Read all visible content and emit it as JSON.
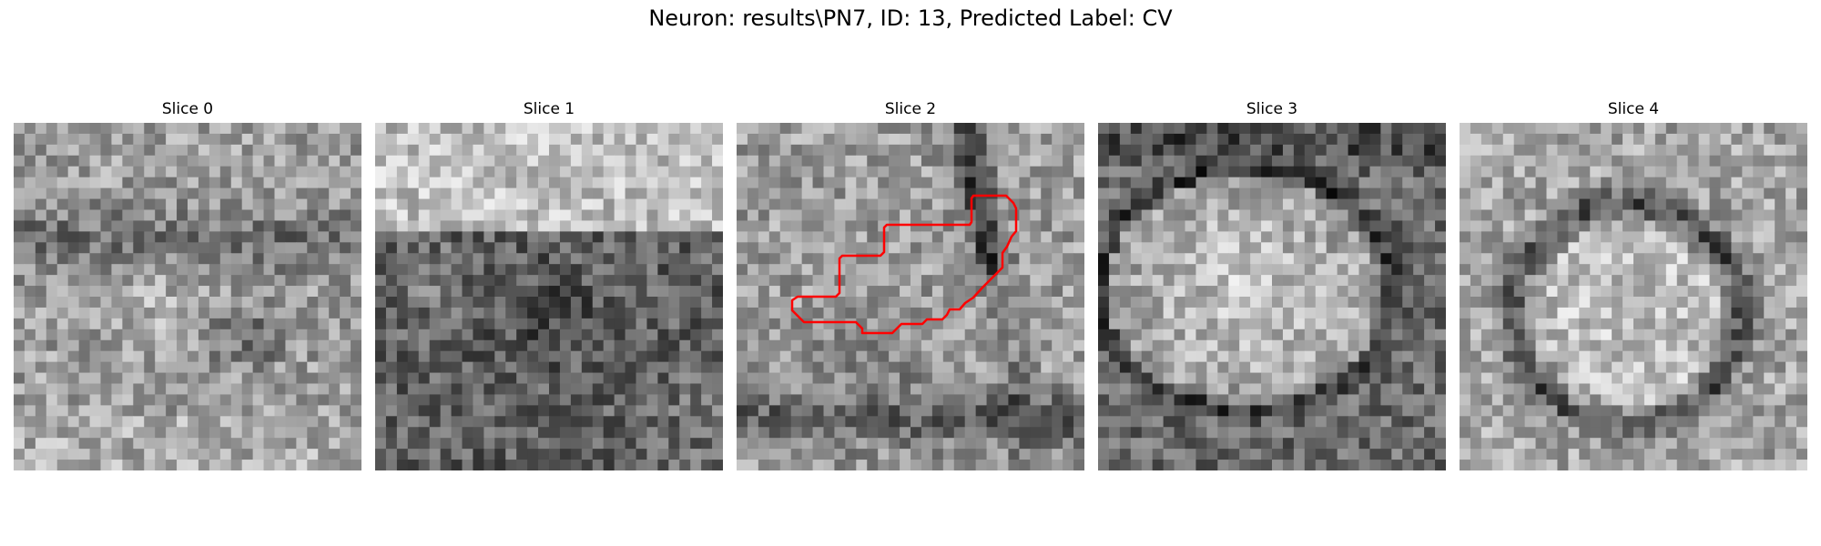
{
  "figure": {
    "title": "Neuron: results\\PN7, ID: 13, Predicted Label: CV"
  },
  "slices": [
    {
      "title": "Slice 0",
      "pattern": "noise-dark-band-bottom-texture"
    },
    {
      "title": "Slice 1",
      "pattern": "bright-top-dark-lower"
    },
    {
      "title": "Slice 2",
      "pattern": "dark-right-edge-with-contour"
    },
    {
      "title": "Slice 3",
      "pattern": "bright-blob-center"
    },
    {
      "title": "Slice 4",
      "pattern": "ring-with-bright-center"
    }
  ],
  "overlay": {
    "color": "#ff0000",
    "slice_index": 2
  }
}
